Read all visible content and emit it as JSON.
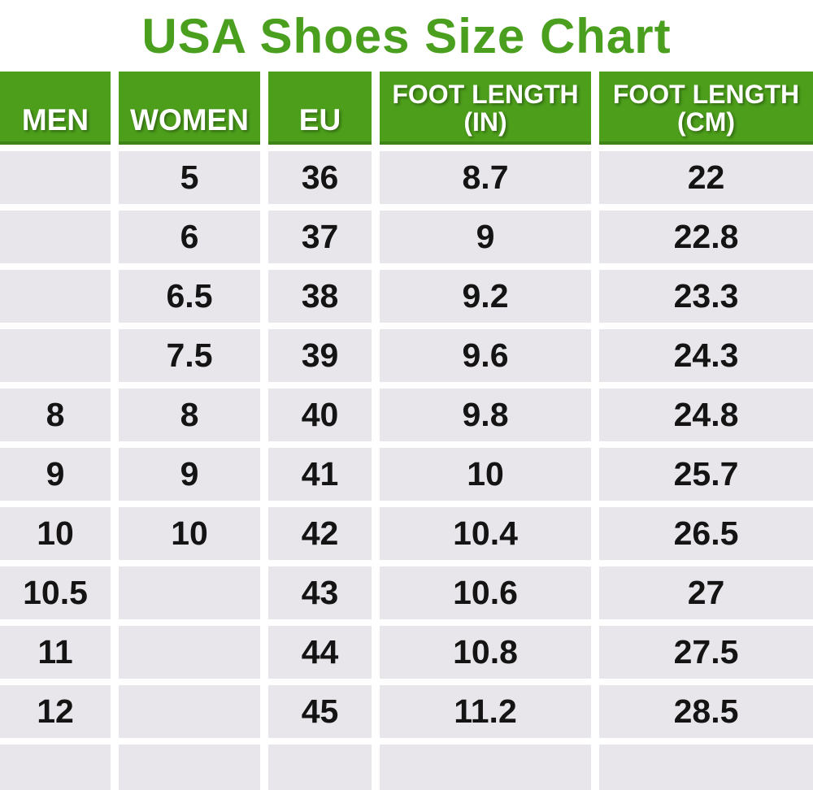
{
  "title": "USA Shoes Size Chart",
  "colors": {
    "title_green": "#4aa01e",
    "header_green": "#4c9e1b",
    "cell_gray": "#e8e6ea",
    "text_black": "#141414",
    "gutter_white": "#ffffff"
  },
  "chart_data": {
    "type": "table",
    "title": "USA Shoes Size Chart",
    "columns": [
      "MEN",
      "WOMEN",
      "EU",
      "FOOT LENGTH\n(IN)",
      "FOOT LENGTH\n(CM)"
    ],
    "rows": [
      [
        "",
        "5",
        "36",
        "8.7",
        "22"
      ],
      [
        "",
        "6",
        "37",
        "9",
        "22.8"
      ],
      [
        "",
        "6.5",
        "38",
        "9.2",
        "23.3"
      ],
      [
        "",
        "7.5",
        "39",
        "9.6",
        "24.3"
      ],
      [
        "8",
        "8",
        "40",
        "9.8",
        "24.8"
      ],
      [
        "9",
        "9",
        "41",
        "10",
        "25.7"
      ],
      [
        "10",
        "10",
        "42",
        "10.4",
        "26.5"
      ],
      [
        "10.5",
        "",
        "43",
        "10.6",
        "27"
      ],
      [
        "11",
        "",
        "44",
        "10.8",
        "27.5"
      ],
      [
        "12",
        "",
        "45",
        "11.2",
        "28.5"
      ],
      [
        "",
        "",
        "",
        "",
        ""
      ]
    ]
  }
}
